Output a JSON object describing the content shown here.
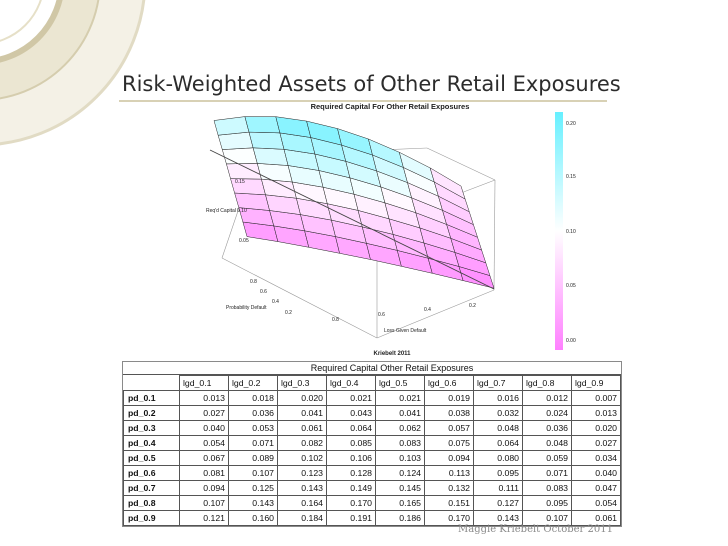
{
  "slide": {
    "title": "Risk-Weighted Assets of Other Retail Exposures",
    "footer": "Maggie Kriebelt October 2011"
  },
  "chart_data": {
    "type": "surface3d",
    "title": "Required Capital For Other Retail Exposures",
    "xlabel": "Loss Given Default",
    "ylabel": "Probability Default",
    "zlabel": "Req'd Capital",
    "caption": "Kriebelt 2011",
    "x_ticks": [
      "0.2",
      "0.4",
      "0.6",
      "0.8"
    ],
    "y_ticks": [
      "0.2",
      "0.4",
      "0.6",
      "0.8"
    ],
    "z_ticks": [
      "0.05",
      "0.10",
      "0.15"
    ],
    "colorbar_ticks": [
      "0.00",
      "0.05",
      "0.10",
      "0.15",
      "0.20"
    ],
    "colors": {
      "low": "#ff80ff",
      "mid": "#ffffff",
      "high": "#66f0ff"
    },
    "lgd": [
      0.1,
      0.2,
      0.3,
      0.4,
      0.5,
      0.6,
      0.7,
      0.8,
      0.9
    ],
    "pd": [
      0.1,
      0.2,
      0.3,
      0.4,
      0.5,
      0.6,
      0.7,
      0.8,
      0.9
    ]
  },
  "table": {
    "title": "Required Capital Other Retail Exposures",
    "columns": [
      "lgd_0.1",
      "lgd_0.2",
      "lgd_0.3",
      "lgd_0.4",
      "lgd_0.5",
      "lgd_0.6",
      "lgd_0.7",
      "lgd_0.8",
      "lgd_0.9"
    ],
    "rows": [
      {
        "label": "pd_0.1",
        "values": [
          "0.013",
          "0.018",
          "0.020",
          "0.021",
          "0.021",
          "0.019",
          "0.016",
          "0.012",
          "0.007"
        ]
      },
      {
        "label": "pd_0.2",
        "values": [
          "0.027",
          "0.036",
          "0.041",
          "0.043",
          "0.041",
          "0.038",
          "0.032",
          "0.024",
          "0.013"
        ]
      },
      {
        "label": "pd_0.3",
        "values": [
          "0.040",
          "0.053",
          "0.061",
          "0.064",
          "0.062",
          "0.057",
          "0.048",
          "0.036",
          "0.020"
        ]
      },
      {
        "label": "pd_0.4",
        "values": [
          "0.054",
          "0.071",
          "0.082",
          "0.085",
          "0.083",
          "0.075",
          "0.064",
          "0.048",
          "0.027"
        ]
      },
      {
        "label": "pd_0.5",
        "values": [
          "0.067",
          "0.089",
          "0.102",
          "0.106",
          "0.103",
          "0.094",
          "0.080",
          "0.059",
          "0.034"
        ]
      },
      {
        "label": "pd_0.6",
        "values": [
          "0.081",
          "0.107",
          "0.123",
          "0.128",
          "0.124",
          "0.113",
          "0.095",
          "0.071",
          "0.040"
        ]
      },
      {
        "label": "pd_0.7",
        "values": [
          "0.094",
          "0.125",
          "0.143",
          "0.149",
          "0.145",
          "0.132",
          "0.111",
          "0.083",
          "0.047"
        ]
      },
      {
        "label": "pd_0.8",
        "values": [
          "0.107",
          "0.143",
          "0.164",
          "0.170",
          "0.165",
          "0.151",
          "0.127",
          "0.095",
          "0.054"
        ]
      },
      {
        "label": "pd_0.9",
        "values": [
          "0.121",
          "0.160",
          "0.184",
          "0.191",
          "0.186",
          "0.170",
          "0.143",
          "0.107",
          "0.061"
        ]
      }
    ]
  }
}
